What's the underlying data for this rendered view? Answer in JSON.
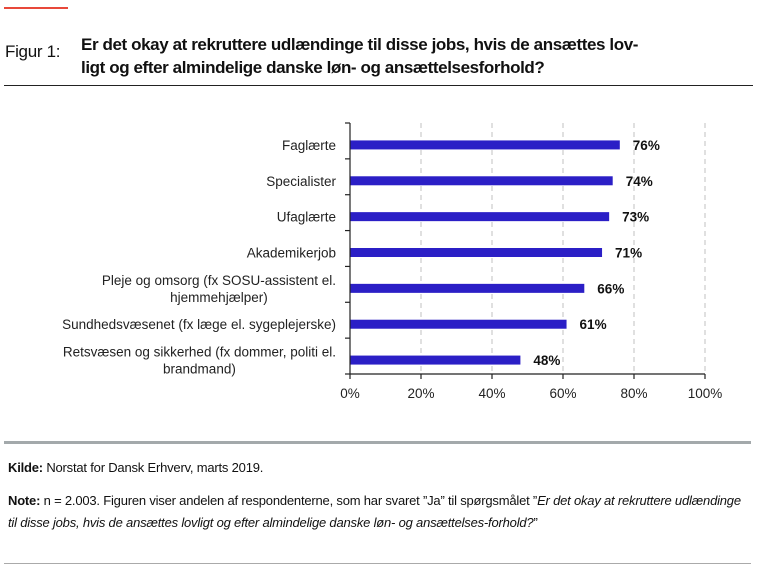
{
  "colors": {
    "accent": "#e8483a",
    "bar": "#2b1fc6",
    "footer_rule": "#a3a9ab",
    "grid": "#cfcfcf"
  },
  "figure": {
    "label": "Figur 1:",
    "title_line1": "Er det okay at rekruttere udlændinge til disse jobs, hvis de ansættes lov-",
    "title_line2": "ligt og efter almindelige danske løn- og ansættelsesforhold?"
  },
  "chart_data": {
    "type": "bar",
    "orientation": "horizontal",
    "title": "Er det okay at rekruttere udlændinge til disse jobs, hvis de ansættes lovligt og efter almindelige danske løn- og ansættelsesforhold?",
    "categories": [
      [
        "Faglærte"
      ],
      [
        "Specialister"
      ],
      [
        "Ufaglærte"
      ],
      [
        "Akademikerjob"
      ],
      [
        "Pleje og omsorg (fx SOSU-assistent el.",
        "hjemmehjælper)"
      ],
      [
        "Sundhedsvæsenet (fx læge el. sygeplejerske)"
      ],
      [
        "Retsvæsen og sikkerhed (fx dommer, politi el.",
        "brandmand)"
      ]
    ],
    "values": [
      76,
      74,
      73,
      71,
      66,
      61,
      48
    ],
    "value_labels": [
      "76%",
      "74%",
      "73%",
      "71%",
      "66%",
      "61%",
      "48%"
    ],
    "xlim": [
      0,
      100
    ],
    "xticks": [
      0,
      20,
      40,
      60,
      80,
      100
    ],
    "xtick_labels": [
      "0%",
      "20%",
      "40%",
      "60%",
      "80%",
      "100%"
    ],
    "xlabel": "",
    "ylabel": "",
    "grid": "vertical dashed",
    "legend": "none"
  },
  "footer": {
    "source_label": "Kilde:",
    "source_text": " Norstat for Dansk Erhverv, marts 2019.",
    "note_label": "Note:",
    "note_text": " n = 2.003. Figuren viser andelen af respondenterne, som har svaret ”Ja” til spørgsmålet ”",
    "note_italic": "Er det okay at rekruttere udlændinge til disse jobs, hvis de ansættes lovligt og efter almindelige danske løn- og ansættelses-forhold?",
    "note_end": "”"
  }
}
